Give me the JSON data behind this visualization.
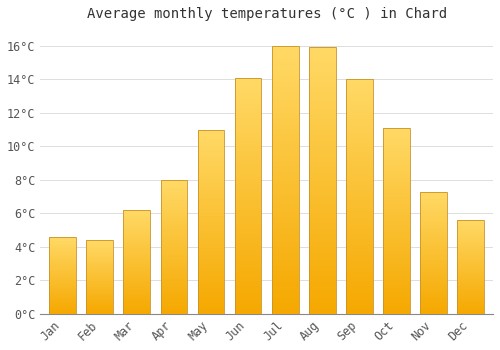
{
  "title": "Average monthly temperatures (°C ) in Chard",
  "months": [
    "Jan",
    "Feb",
    "Mar",
    "Apr",
    "May",
    "Jun",
    "Jul",
    "Aug",
    "Sep",
    "Oct",
    "Nov",
    "Dec"
  ],
  "values": [
    4.6,
    4.4,
    6.2,
    8.0,
    11.0,
    14.1,
    16.0,
    15.9,
    14.0,
    11.1,
    7.3,
    5.6
  ],
  "bar_color_bottom": "#F5A800",
  "bar_color_top": "#FFD966",
  "bar_edge_color": "#C8922A",
  "ylim": [
    0,
    17
  ],
  "yticks": [
    0,
    2,
    4,
    6,
    8,
    10,
    12,
    14,
    16
  ],
  "ytick_labels": [
    "0°C",
    "2°C",
    "4°C",
    "6°C",
    "8°C",
    "10°C",
    "12°C",
    "14°C",
    "16°C"
  ],
  "background_color": "#FFFFFF",
  "grid_color": "#DDDDDD",
  "title_fontsize": 10,
  "tick_fontsize": 8.5,
  "font_family": "monospace"
}
